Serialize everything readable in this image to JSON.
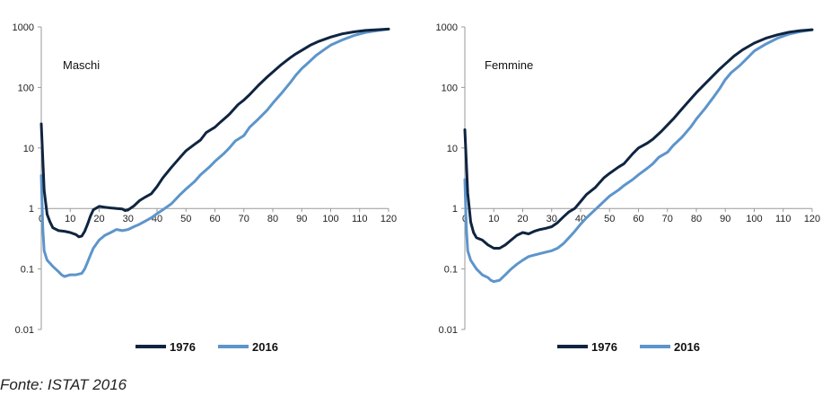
{
  "source": "Fonte: ISTAT 2016",
  "colors": {
    "series_1976": "#0f2440",
    "series_2016": "#5d95cb",
    "axis": "#9a9a9a"
  },
  "chart_data": [
    {
      "type": "line",
      "title": "Maschi",
      "xlabel": "",
      "ylabel": "",
      "yscale": "log",
      "xlim": [
        0,
        120
      ],
      "ylim": [
        0.01,
        1000
      ],
      "x_ticks": [
        0,
        10,
        20,
        30,
        40,
        50,
        60,
        70,
        80,
        90,
        100,
        110,
        120
      ],
      "y_ticks": [
        "0.01",
        "0.1",
        "1",
        "10",
        "100",
        "1000"
      ],
      "y_tick_values": [
        0.01,
        0.1,
        1,
        10,
        100,
        1000
      ],
      "grid": false,
      "legend_position": "bottom-center",
      "series": [
        {
          "name": "1976",
          "color": "#0f2440",
          "points": [
            [
              0,
              25
            ],
            [
              1,
              2
            ],
            [
              2,
              0.8
            ],
            [
              3,
              0.6
            ],
            [
              4,
              0.48
            ],
            [
              6,
              0.43
            ],
            [
              8,
              0.42
            ],
            [
              10,
              0.4
            ],
            [
              12,
              0.37
            ],
            [
              13,
              0.34
            ],
            [
              14,
              0.35
            ],
            [
              15,
              0.42
            ],
            [
              16,
              0.55
            ],
            [
              17,
              0.75
            ],
            [
              18,
              0.95
            ],
            [
              20,
              1.08
            ],
            [
              22,
              1.05
            ],
            [
              24,
              1.02
            ],
            [
              26,
              1.0
            ],
            [
              28,
              0.98
            ],
            [
              29,
              0.92
            ],
            [
              30,
              0.95
            ],
            [
              32,
              1.1
            ],
            [
              34,
              1.35
            ],
            [
              36,
              1.55
            ],
            [
              38,
              1.75
            ],
            [
              40,
              2.3
            ],
            [
              42,
              3.2
            ],
            [
              45,
              4.8
            ],
            [
              48,
              7
            ],
            [
              50,
              9
            ],
            [
              53,
              11.5
            ],
            [
              55,
              13.5
            ],
            [
              57,
              18
            ],
            [
              60,
              22
            ],
            [
              62,
              27
            ],
            [
              65,
              36
            ],
            [
              68,
              52
            ],
            [
              70,
              62
            ],
            [
              72,
              76
            ],
            [
              75,
              108
            ],
            [
              78,
              148
            ],
            [
              80,
              180
            ],
            [
              83,
              240
            ],
            [
              86,
              310
            ],
            [
              88,
              360
            ],
            [
              90,
              410
            ],
            [
              93,
              500
            ],
            [
              96,
              580
            ],
            [
              100,
              680
            ],
            [
              104,
              770
            ],
            [
              108,
              830
            ],
            [
              112,
              875
            ],
            [
              116,
              900
            ],
            [
              120,
              920
            ]
          ]
        },
        {
          "name": "2016",
          "color": "#5d95cb",
          "points": [
            [
              0,
              3.5
            ],
            [
              0.5,
              0.5
            ],
            [
              1,
              0.2
            ],
            [
              2,
              0.14
            ],
            [
              4,
              0.11
            ],
            [
              6,
              0.09
            ],
            [
              7,
              0.08
            ],
            [
              8,
              0.075
            ],
            [
              10,
              0.08
            ],
            [
              12,
              0.08
            ],
            [
              14,
              0.085
            ],
            [
              15,
              0.1
            ],
            [
              16,
              0.13
            ],
            [
              17,
              0.17
            ],
            [
              18,
              0.22
            ],
            [
              20,
              0.3
            ],
            [
              22,
              0.36
            ],
            [
              24,
              0.4
            ],
            [
              26,
              0.45
            ],
            [
              28,
              0.43
            ],
            [
              30,
              0.45
            ],
            [
              32,
              0.5
            ],
            [
              34,
              0.55
            ],
            [
              36,
              0.62
            ],
            [
              38,
              0.7
            ],
            [
              40,
              0.82
            ],
            [
              42,
              0.95
            ],
            [
              45,
              1.2
            ],
            [
              48,
              1.7
            ],
            [
              50,
              2.1
            ],
            [
              53,
              2.8
            ],
            [
              55,
              3.6
            ],
            [
              58,
              4.8
            ],
            [
              60,
              6
            ],
            [
              63,
              8
            ],
            [
              65,
              10
            ],
            [
              67,
              13
            ],
            [
              70,
              16
            ],
            [
              72,
              22
            ],
            [
              75,
              30
            ],
            [
              78,
              42
            ],
            [
              80,
              55
            ],
            [
              83,
              80
            ],
            [
              86,
              120
            ],
            [
              88,
              160
            ],
            [
              90,
              205
            ],
            [
              92,
              250
            ],
            [
              95,
              340
            ],
            [
              98,
              430
            ],
            [
              100,
              500
            ],
            [
              104,
              610
            ],
            [
              108,
              720
            ],
            [
              112,
              810
            ],
            [
              116,
              870
            ],
            [
              120,
              920
            ]
          ]
        }
      ]
    },
    {
      "type": "line",
      "title": "Femmine",
      "xlabel": "",
      "ylabel": "",
      "yscale": "log",
      "xlim": [
        0,
        120
      ],
      "ylim": [
        0.01,
        1000
      ],
      "x_ticks": [
        0,
        10,
        20,
        30,
        40,
        50,
        60,
        70,
        80,
        90,
        100,
        110,
        120
      ],
      "y_ticks": [
        "0.01",
        "0.1",
        "1",
        "10",
        "100",
        "1000"
      ],
      "y_tick_values": [
        0.01,
        0.1,
        1,
        10,
        100,
        1000
      ],
      "grid": false,
      "legend_position": "bottom-center",
      "series": [
        {
          "name": "1976",
          "color": "#0f2440",
          "points": [
            [
              0,
              20
            ],
            [
              1,
              1.8
            ],
            [
              2,
              0.6
            ],
            [
              3,
              0.4
            ],
            [
              4,
              0.33
            ],
            [
              6,
              0.3
            ],
            [
              8,
              0.25
            ],
            [
              10,
              0.22
            ],
            [
              12,
              0.22
            ],
            [
              14,
              0.25
            ],
            [
              16,
              0.3
            ],
            [
              18,
              0.36
            ],
            [
              20,
              0.4
            ],
            [
              22,
              0.38
            ],
            [
              24,
              0.42
            ],
            [
              26,
              0.45
            ],
            [
              28,
              0.47
            ],
            [
              30,
              0.5
            ],
            [
              32,
              0.58
            ],
            [
              34,
              0.72
            ],
            [
              36,
              0.88
            ],
            [
              38,
              1.0
            ],
            [
              40,
              1.3
            ],
            [
              42,
              1.7
            ],
            [
              45,
              2.2
            ],
            [
              48,
              3.2
            ],
            [
              50,
              3.8
            ],
            [
              53,
              4.8
            ],
            [
              55,
              5.5
            ],
            [
              58,
              8
            ],
            [
              60,
              10
            ],
            [
              63,
              12
            ],
            [
              65,
              14
            ],
            [
              68,
              19
            ],
            [
              70,
              24
            ],
            [
              72,
              30
            ],
            [
              75,
              44
            ],
            [
              78,
              64
            ],
            [
              80,
              82
            ],
            [
              83,
              115
            ],
            [
              86,
              160
            ],
            [
              88,
              200
            ],
            [
              90,
              245
            ],
            [
              93,
              330
            ],
            [
              96,
              420
            ],
            [
              100,
              540
            ],
            [
              104,
              650
            ],
            [
              108,
              740
            ],
            [
              112,
              820
            ],
            [
              116,
              870
            ],
            [
              120,
              900
            ]
          ]
        },
        {
          "name": "2016",
          "color": "#5d95cb",
          "points": [
            [
              0,
              3
            ],
            [
              0.5,
              0.5
            ],
            [
              1,
              0.2
            ],
            [
              2,
              0.14
            ],
            [
              4,
              0.1
            ],
            [
              6,
              0.08
            ],
            [
              8,
              0.072
            ],
            [
              9,
              0.065
            ],
            [
              10,
              0.062
            ],
            [
              12,
              0.065
            ],
            [
              14,
              0.08
            ],
            [
              16,
              0.1
            ],
            [
              18,
              0.12
            ],
            [
              20,
              0.14
            ],
            [
              22,
              0.16
            ],
            [
              24,
              0.17
            ],
            [
              26,
              0.18
            ],
            [
              28,
              0.19
            ],
            [
              30,
              0.2
            ],
            [
              32,
              0.22
            ],
            [
              34,
              0.26
            ],
            [
              36,
              0.33
            ],
            [
              38,
              0.42
            ],
            [
              40,
              0.55
            ],
            [
              42,
              0.7
            ],
            [
              45,
              0.95
            ],
            [
              48,
              1.3
            ],
            [
              50,
              1.6
            ],
            [
              53,
              2
            ],
            [
              55,
              2.4
            ],
            [
              58,
              3
            ],
            [
              60,
              3.6
            ],
            [
              63,
              4.6
            ],
            [
              65,
              5.5
            ],
            [
              67,
              7
            ],
            [
              70,
              8.5
            ],
            [
              72,
              11
            ],
            [
              75,
              15
            ],
            [
              78,
              22
            ],
            [
              80,
              30
            ],
            [
              83,
              45
            ],
            [
              86,
              70
            ],
            [
              88,
              95
            ],
            [
              90,
              135
            ],
            [
              92,
              175
            ],
            [
              95,
              230
            ],
            [
              98,
              320
            ],
            [
              100,
              400
            ],
            [
              104,
              520
            ],
            [
              108,
              650
            ],
            [
              112,
              760
            ],
            [
              116,
              840
            ],
            [
              120,
              900
            ]
          ]
        }
      ]
    }
  ]
}
